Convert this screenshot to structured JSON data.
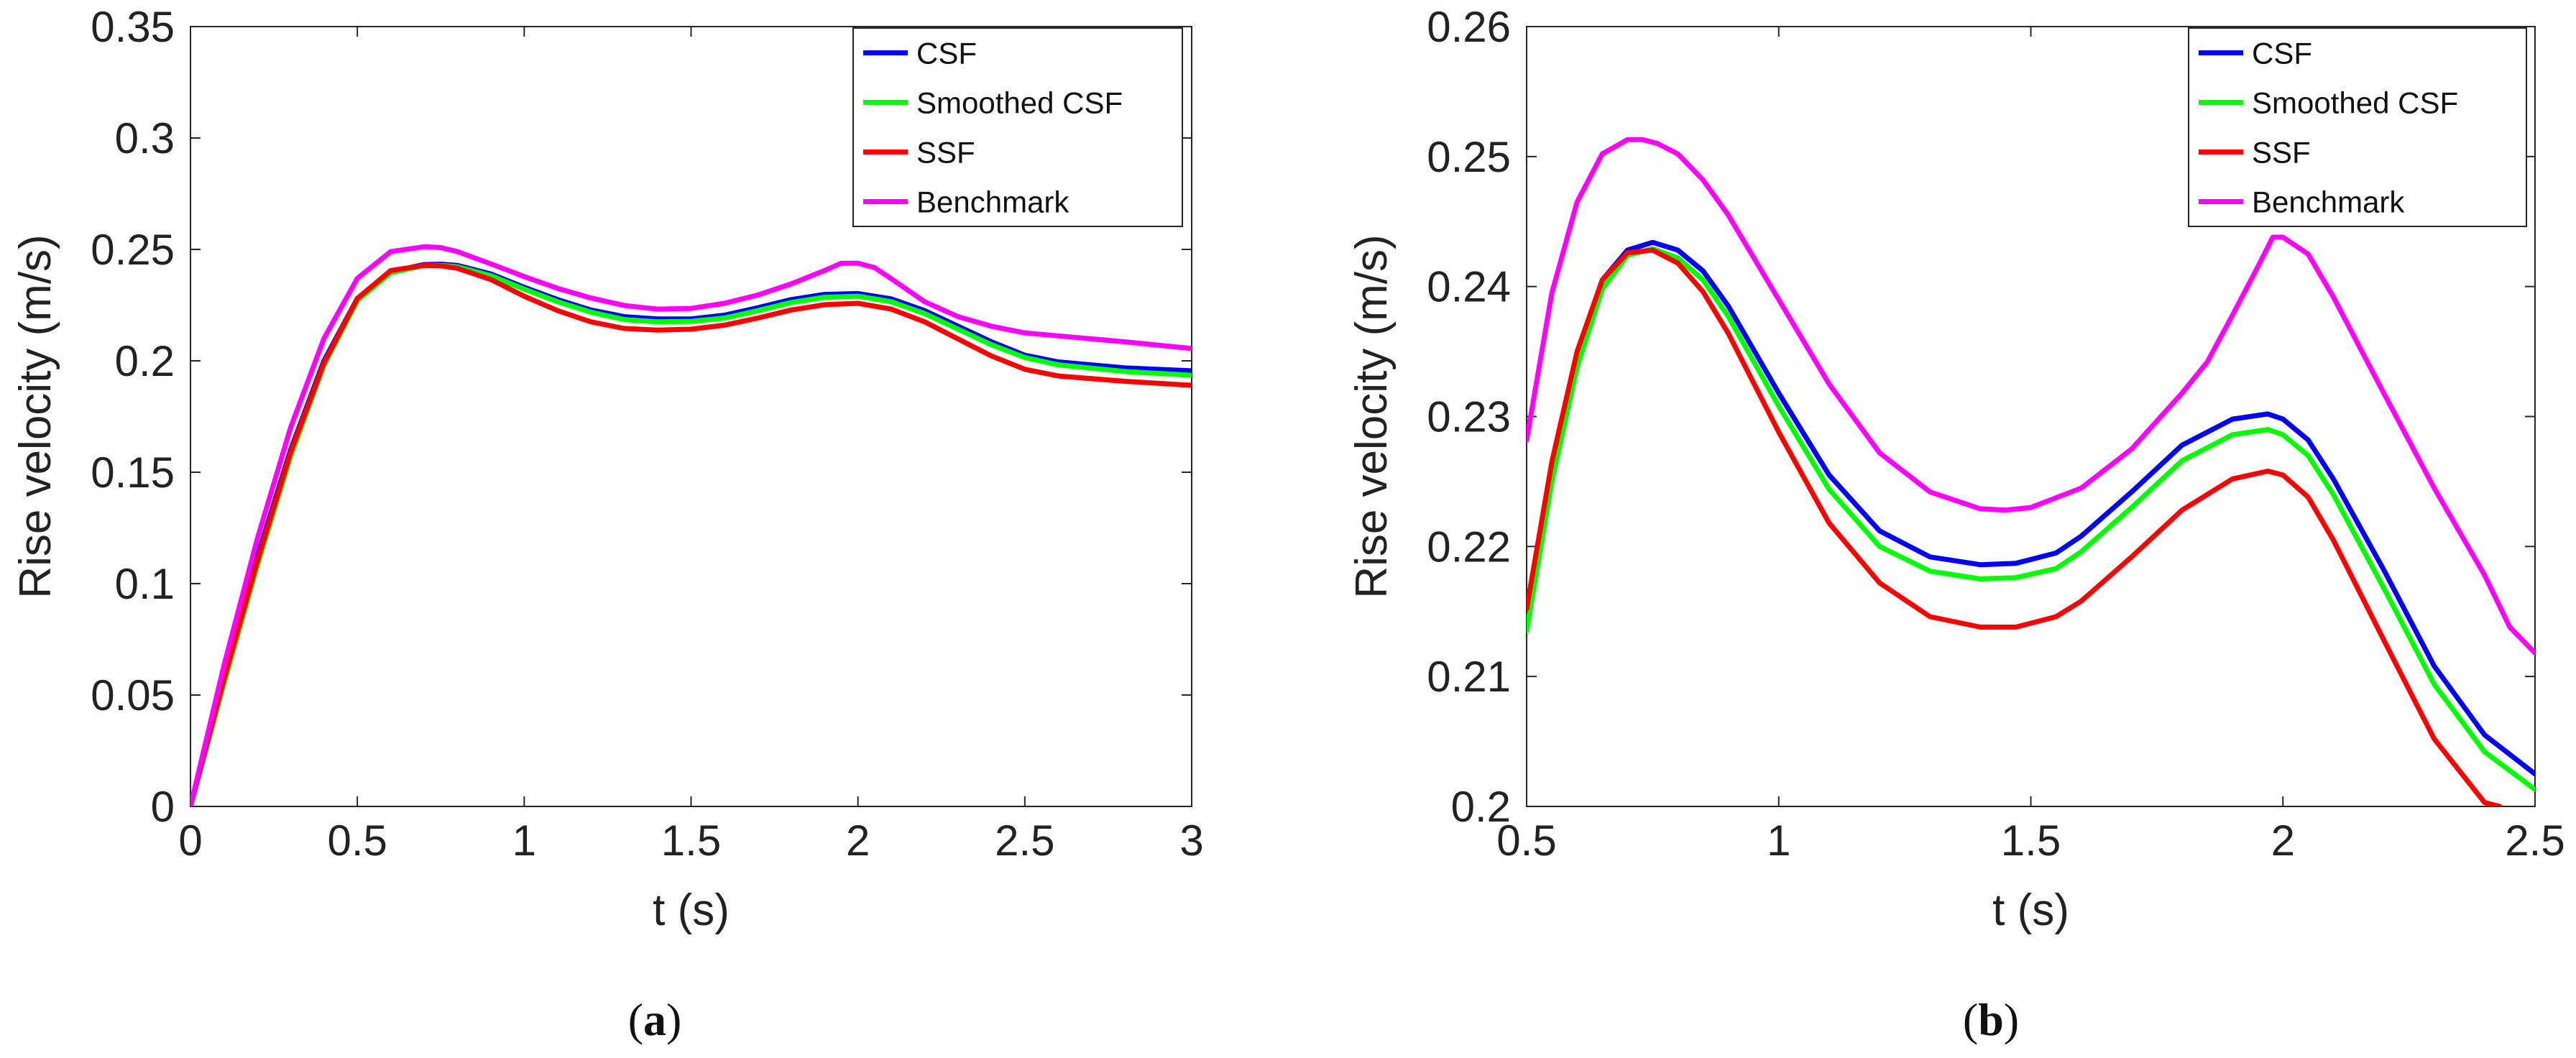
{
  "chart_data": [
    {
      "type": "line",
      "caption": "(a)",
      "xlabel": "t (s)",
      "ylabel": "Rise velocity (m/s)",
      "xlim": [
        0,
        3
      ],
      "ylim": [
        0,
        0.35
      ],
      "xticks": [
        0,
        0.5,
        1,
        1.5,
        2,
        2.5,
        3
      ],
      "xtick_labels": [
        "0",
        "0.5",
        "1",
        "1.5",
        "2",
        "2.5",
        "3"
      ],
      "yticks": [
        0,
        0.05,
        0.1,
        0.15,
        0.2,
        0.25,
        0.3,
        0.35
      ],
      "ytick_labels": [
        "0",
        "0.05",
        "0.1",
        "0.15",
        "0.2",
        "0.25",
        "0.3",
        "0.35"
      ],
      "legend_position": "top-right",
      "grid": false,
      "series": [
        {
          "name": "CSF",
          "color": "#0000ff",
          "x": [
            0,
            0.1,
            0.2,
            0.3,
            0.4,
            0.5,
            0.6,
            0.7,
            0.75,
            0.8,
            0.9,
            1.0,
            1.1,
            1.2,
            1.3,
            1.4,
            1.5,
            1.6,
            1.7,
            1.8,
            1.9,
            2.0,
            2.1,
            2.2,
            2.3,
            2.4,
            2.5,
            2.6,
            2.8,
            3.0
          ],
          "y": [
            0,
            0.058,
            0.112,
            0.16,
            0.2,
            0.228,
            0.24,
            0.2432,
            0.2434,
            0.2428,
            0.239,
            0.233,
            0.2275,
            0.2228,
            0.2198,
            0.2188,
            0.2188,
            0.2205,
            0.2238,
            0.2275,
            0.2298,
            0.2302,
            0.2278,
            0.2225,
            0.2155,
            0.2085,
            0.2025,
            0.1995,
            0.1968,
            0.1955
          ]
        },
        {
          "name": "Smoothed CSF",
          "color": "#00ff00",
          "x": [
            0,
            0.1,
            0.2,
            0.3,
            0.4,
            0.5,
            0.6,
            0.7,
            0.75,
            0.8,
            0.9,
            1.0,
            1.1,
            1.2,
            1.3,
            1.4,
            1.5,
            1.6,
            1.7,
            1.8,
            1.9,
            2.0,
            2.1,
            2.2,
            2.3,
            2.4,
            2.5,
            2.6,
            2.8,
            3.0
          ],
          "y": [
            0,
            0.055,
            0.108,
            0.157,
            0.198,
            0.227,
            0.2395,
            0.2428,
            0.2428,
            0.2422,
            0.2382,
            0.2322,
            0.2265,
            0.2218,
            0.2185,
            0.2175,
            0.2177,
            0.2192,
            0.2225,
            0.2262,
            0.2285,
            0.229,
            0.2265,
            0.2212,
            0.2142,
            0.2072,
            0.2015,
            0.1982,
            0.1952,
            0.1935
          ]
        },
        {
          "name": "SSF",
          "color": "#ff0000",
          "x": [
            0,
            0.1,
            0.2,
            0.3,
            0.4,
            0.5,
            0.6,
            0.7,
            0.75,
            0.8,
            0.9,
            1.0,
            1.1,
            1.2,
            1.3,
            1.4,
            1.5,
            1.6,
            1.7,
            1.8,
            1.9,
            2.0,
            2.1,
            2.2,
            2.3,
            2.4,
            2.5,
            2.6,
            2.8,
            3.0
          ],
          "y": [
            0,
            0.057,
            0.11,
            0.159,
            0.199,
            0.228,
            0.2405,
            0.2428,
            0.2426,
            0.2415,
            0.2365,
            0.229,
            0.2225,
            0.2175,
            0.2145,
            0.2138,
            0.2142,
            0.216,
            0.2192,
            0.2228,
            0.2252,
            0.2258,
            0.2232,
            0.2175,
            0.2098,
            0.2022,
            0.1962,
            0.1932,
            0.1908,
            0.189
          ]
        },
        {
          "name": "Benchmark",
          "color": "#ff00ff",
          "x": [
            0,
            0.1,
            0.2,
            0.3,
            0.4,
            0.5,
            0.6,
            0.7,
            0.75,
            0.8,
            0.9,
            1.0,
            1.1,
            1.2,
            1.3,
            1.4,
            1.5,
            1.6,
            1.7,
            1.8,
            1.9,
            1.95,
            2.0,
            2.05,
            2.1,
            2.2,
            2.3,
            2.4,
            2.5,
            2.6,
            2.8,
            3.0
          ],
          "y": [
            0,
            0.063,
            0.12,
            0.17,
            0.21,
            0.237,
            0.249,
            0.2512,
            0.2508,
            0.249,
            0.2435,
            0.2378,
            0.2325,
            0.2282,
            0.2248,
            0.2232,
            0.2235,
            0.2258,
            0.2295,
            0.2345,
            0.2405,
            0.2438,
            0.2438,
            0.2418,
            0.2368,
            0.2265,
            0.2198,
            0.2155,
            0.2125,
            0.2112,
            0.2085,
            0.2055
          ]
        }
      ]
    },
    {
      "type": "line",
      "caption": "(b)",
      "xlabel": "t (s)",
      "ylabel": "Rise velocity (m/s)",
      "xlim": [
        0.5,
        2.5
      ],
      "ylim": [
        0.2,
        0.26
      ],
      "xticks": [
        0.5,
        1,
        1.5,
        2,
        2.5
      ],
      "xtick_labels": [
        "0.5",
        "1",
        "1.5",
        "2",
        "2.5"
      ],
      "yticks": [
        0.2,
        0.21,
        0.22,
        0.23,
        0.24,
        0.25,
        0.26
      ],
      "ytick_labels": [
        "0.2",
        "0.21",
        "0.22",
        "0.23",
        "0.24",
        "0.25",
        "0.26"
      ],
      "legend_position": "top-right",
      "grid": false,
      "series": [
        {
          "name": "CSF",
          "color": "#0000ff",
          "x": [
            0.5,
            0.55,
            0.6,
            0.65,
            0.7,
            0.75,
            0.8,
            0.85,
            0.9,
            1.0,
            1.1,
            1.2,
            1.3,
            1.4,
            1.47,
            1.55,
            1.6,
            1.7,
            1.8,
            1.9,
            1.97,
            2.0,
            2.05,
            2.1,
            2.2,
            2.3,
            2.4,
            2.5
          ],
          "y": [
            0.2152,
            0.2262,
            0.2348,
            0.2405,
            0.2428,
            0.2434,
            0.2428,
            0.2412,
            0.2385,
            0.2318,
            0.2255,
            0.2212,
            0.2192,
            0.2186,
            0.2187,
            0.2195,
            0.2208,
            0.2242,
            0.2278,
            0.2298,
            0.2302,
            0.2298,
            0.2282,
            0.2252,
            0.2182,
            0.2108,
            0.2055,
            0.2025
          ]
        },
        {
          "name": "Smoothed CSF",
          "color": "#00ff00",
          "x": [
            0.5,
            0.55,
            0.6,
            0.65,
            0.7,
            0.75,
            0.8,
            0.85,
            0.9,
            1.0,
            1.1,
            1.2,
            1.3,
            1.4,
            1.47,
            1.55,
            1.6,
            1.7,
            1.8,
            1.9,
            1.97,
            2.0,
            2.05,
            2.1,
            2.2,
            2.3,
            2.4,
            2.5
          ],
          "y": [
            0.2135,
            0.225,
            0.2338,
            0.2398,
            0.2424,
            0.2429,
            0.2422,
            0.2405,
            0.2377,
            0.2308,
            0.2244,
            0.22,
            0.2181,
            0.2175,
            0.2176,
            0.2183,
            0.2196,
            0.223,
            0.2266,
            0.2286,
            0.229,
            0.2286,
            0.227,
            0.224,
            0.2168,
            0.2094,
            0.2042,
            0.2013
          ]
        },
        {
          "name": "SSF",
          "color": "#ff0000",
          "x": [
            0.5,
            0.55,
            0.6,
            0.65,
            0.7,
            0.75,
            0.8,
            0.85,
            0.9,
            1.0,
            1.1,
            1.2,
            1.3,
            1.4,
            1.47,
            1.55,
            1.6,
            1.7,
            1.8,
            1.9,
            1.97,
            2.0,
            2.05,
            2.1,
            2.2,
            2.3,
            2.4,
            2.43
          ],
          "y": [
            0.2152,
            0.2265,
            0.235,
            0.2405,
            0.2426,
            0.2428,
            0.2418,
            0.2396,
            0.2364,
            0.2288,
            0.2218,
            0.2172,
            0.2146,
            0.2138,
            0.2138,
            0.2146,
            0.2158,
            0.2192,
            0.2228,
            0.2252,
            0.2258,
            0.2255,
            0.2238,
            0.2205,
            0.2128,
            0.2052,
            0.2003,
            0.2
          ]
        },
        {
          "name": "Benchmark",
          "color": "#ff00ff",
          "x": [
            0.5,
            0.55,
            0.6,
            0.65,
            0.7,
            0.73,
            0.76,
            0.8,
            0.85,
            0.9,
            1.0,
            1.1,
            1.2,
            1.3,
            1.4,
            1.45,
            1.5,
            1.6,
            1.7,
            1.8,
            1.85,
            1.9,
            1.95,
            1.98,
            2.0,
            2.05,
            2.1,
            2.2,
            2.3,
            2.4,
            2.45,
            2.5
          ],
          "y": [
            0.2282,
            0.2395,
            0.2465,
            0.2502,
            0.2513,
            0.2513,
            0.251,
            0.2502,
            0.2482,
            0.2455,
            0.239,
            0.2325,
            0.2272,
            0.2242,
            0.2229,
            0.2228,
            0.223,
            0.2245,
            0.2275,
            0.2318,
            0.2342,
            0.2378,
            0.2415,
            0.2438,
            0.2438,
            0.2425,
            0.2392,
            0.2318,
            0.2245,
            0.2178,
            0.2138,
            0.2118
          ]
        }
      ]
    }
  ]
}
